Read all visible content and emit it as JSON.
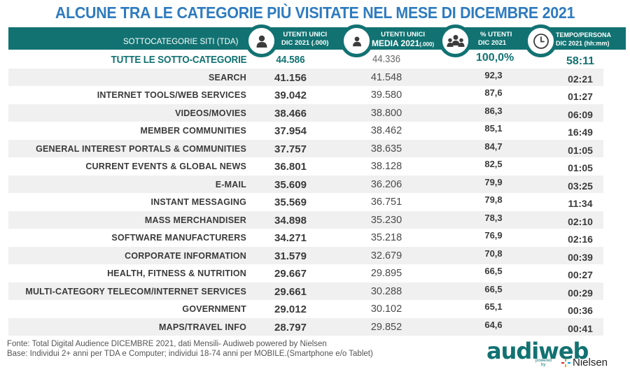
{
  "title": "ALCUNE TRA LE CATEGORIE PIÙ VISITATE NEL MESE DI DICEMBRE 2021",
  "colors": {
    "accent": "#127272",
    "title": "#2e7bbf",
    "row_shade": "#f0f0f0"
  },
  "header": {
    "category_label": "SOTTOCATEGORIE SITI  (TDA)",
    "col_users": {
      "line1": "UTENTI UNICI",
      "line2": "DIC 2021 (.000)",
      "icon": "user-icon"
    },
    "col_media": {
      "line1": "UTENTI UNICI",
      "line2a": "MEDIA 2021",
      "line2b": "(.000)",
      "icon": "user-icon"
    },
    "col_pct": {
      "line1": "% UTENTI",
      "line2": "DIC 2021",
      "icon": "group-icon"
    },
    "col_time": {
      "line1": "TEMPO/PERSONA",
      "line2": "DIC 2021 (hh:mm)",
      "icon": "clock-icon"
    }
  },
  "total": {
    "name": "TUTTE LE SOTTO-CATEGORIE",
    "users": "44.586",
    "media": "44.336",
    "pct": "100,0%",
    "time": "58:11"
  },
  "rows": [
    {
      "name": "SEARCH",
      "users": "41.156",
      "media": "41.548",
      "pct": "92,3",
      "time": "02:21"
    },
    {
      "name": "INTERNET TOOLS/WEB SERVICES",
      "users": "39.042",
      "media": "39.580",
      "pct": "87,6",
      "time": "01:27"
    },
    {
      "name": "VIDEOS/MOVIES",
      "users": "38.466",
      "media": "38.800",
      "pct": "86,3",
      "time": "06:09"
    },
    {
      "name": "MEMBER COMMUNITIES",
      "users": "37.954",
      "media": "38.462",
      "pct": "85,1",
      "time": "16:49"
    },
    {
      "name": "GENERAL INTEREST PORTALS & COMMUNITIES",
      "users": "37.757",
      "media": "38.635",
      "pct": "84,7",
      "time": "01:05"
    },
    {
      "name": "CURRENT EVENTS & GLOBAL NEWS",
      "users": "36.801",
      "media": "38.128",
      "pct": "82,5",
      "time": "01:05"
    },
    {
      "name": "E-MAIL",
      "users": "35.609",
      "media": "36.206",
      "pct": "79,9",
      "time": "03:25"
    },
    {
      "name": "INSTANT MESSAGING",
      "users": "35.569",
      "media": "36.751",
      "pct": "79,8",
      "time": "11:34"
    },
    {
      "name": "MASS MERCHANDISER",
      "users": "34.898",
      "media": "35.230",
      "pct": "78,3",
      "time": "02:10"
    },
    {
      "name": "SOFTWARE MANUFACTURERS",
      "users": "34.271",
      "media": "35.218",
      "pct": "76,9",
      "time": "02:16"
    },
    {
      "name": "CORPORATE INFORMATION",
      "users": "31.579",
      "media": "32.679",
      "pct": "70,8",
      "time": "00:39"
    },
    {
      "name": "HEALTH, FITNESS & NUTRITION",
      "users": "29.667",
      "media": "29.895",
      "pct": "66,5",
      "time": "00:27"
    },
    {
      "name": "MULTI-CATEGORY TELECOM/INTERNET SERVICES",
      "users": "29.661",
      "media": "30.288",
      "pct": "66,5",
      "time": "00:29"
    },
    {
      "name": "GOVERNMENT",
      "users": "29.012",
      "media": "30.102",
      "pct": "65,1",
      "time": "00:36"
    },
    {
      "name": "MAPS/TRAVEL INFO",
      "users": "28.797",
      "media": "29.852",
      "pct": "64,6",
      "time": "00:41"
    }
  ],
  "footnotes": {
    "source": "Fonte: Total Digital Audience DICEMBRE  2021, dati Mensili- Audiweb powered by Nielsen",
    "base": "Base:  Individui 2+ anni per TDA e Computer; individui 18-74 anni per MOBILE.(Smartphone e/o Tablet)"
  },
  "logo": {
    "brand": "audiweb",
    "powered": "powered",
    "by": "by",
    "partner": "Nielsen"
  }
}
